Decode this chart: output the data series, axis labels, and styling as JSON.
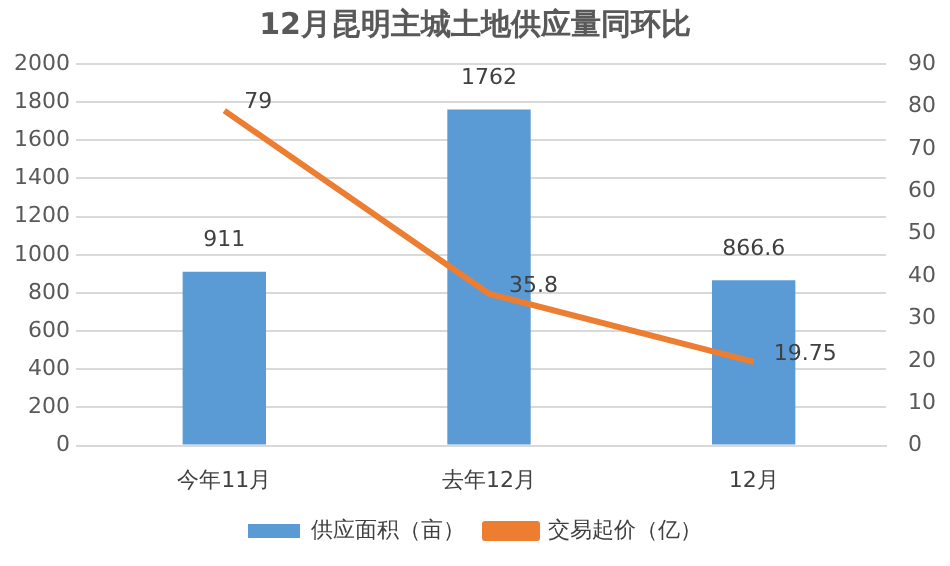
{
  "chart_data": {
    "type": "bar",
    "title": "12月昆明主城土地供应量同环比",
    "categories": [
      "今年11月",
      "去年12月",
      "12月"
    ],
    "series": [
      {
        "name": "供应面积（亩）",
        "color": "#5b9bd5",
        "values": [
          911,
          1762,
          866.6
        ]
      },
      {
        "name": "交易起价（亿）",
        "type": "line",
        "axis": "y2",
        "color": "#ed7d31",
        "values": [
          79,
          35.8,
          19.75
        ]
      }
    ],
    "ylim": [
      0,
      2000
    ],
    "yticks": [
      0,
      200,
      400,
      600,
      800,
      1000,
      1200,
      1400,
      1600,
      1800,
      2000
    ],
    "y2lim": [
      0,
      90
    ],
    "y2ticks": [
      0,
      10,
      20,
      30,
      40,
      50,
      60,
      70,
      80,
      90
    ],
    "grid": "y",
    "legend": "bottom",
    "marker": "none",
    "data_labels": true
  }
}
